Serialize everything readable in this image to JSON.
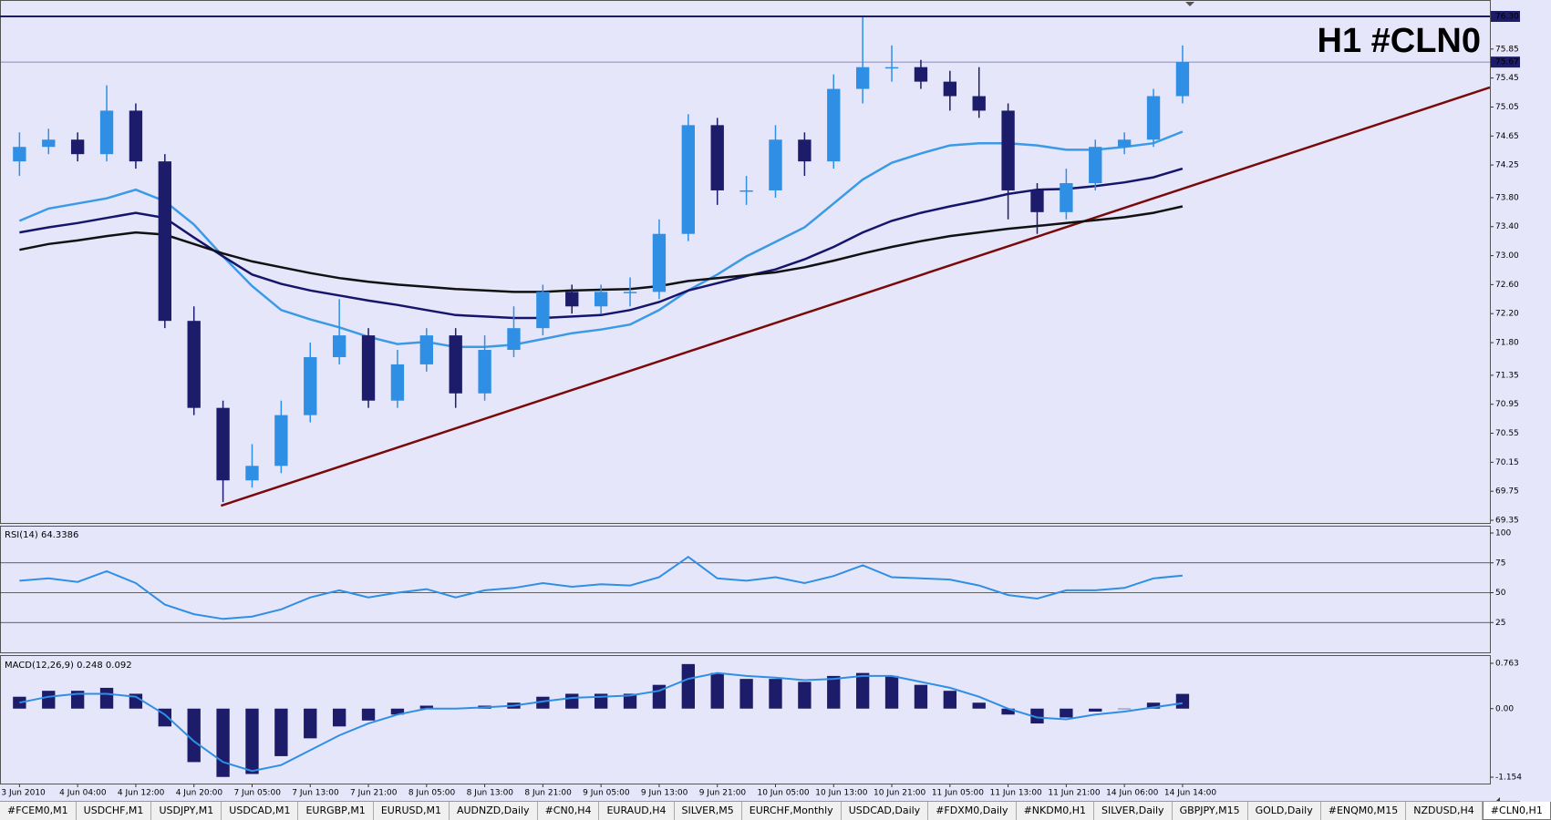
{
  "chart_data": [
    {
      "type": "candlestick",
      "title": "H1 #CLN0",
      "categories": [
        "3 Jun 2010",
        null,
        "4 Jun 04:00",
        null,
        "4 Jun 12:00",
        null,
        "4 Jun 20:00",
        null,
        "7 Jun 05:00",
        null,
        "7 Jun 13:00",
        null,
        "7 Jun 21:00",
        null,
        "8 Jun 05:00",
        null,
        "8 Jun 13:00",
        null,
        "8 Jun 21:00",
        null,
        "9 Jun 05:00",
        null,
        "9 Jun 13:00",
        null,
        "9 Jun 21:00",
        null,
        "10 Jun 05:00",
        null,
        "10 Jun 13:00",
        null,
        "10 Jun 21:00",
        null,
        "11 Jun 05:00",
        null,
        "11 Jun 13:00",
        null,
        "11 Jun 21:00",
        null,
        "14 Jun 06:00",
        null,
        "14 Jun 14:00"
      ],
      "open": [
        74.3,
        74.5,
        74.6,
        74.4,
        75.0,
        74.3,
        72.1,
        70.9,
        69.9,
        70.1,
        70.8,
        71.6,
        71.9,
        71.0,
        71.5,
        71.9,
        71.1,
        71.7,
        72.0,
        72.5,
        72.3,
        72.5,
        72.5,
        73.3,
        74.8,
        73.9,
        73.9,
        74.6,
        74.3,
        75.3,
        75.6,
        75.6,
        75.4,
        75.2,
        75.0,
        73.9,
        73.6,
        74.0,
        74.5,
        74.6,
        75.2
      ],
      "high": [
        74.7,
        74.75,
        74.7,
        75.35,
        75.1,
        74.4,
        72.3,
        71.0,
        70.4,
        71.0,
        71.8,
        72.4,
        72.0,
        71.7,
        72.0,
        72.0,
        71.9,
        72.3,
        72.6,
        72.6,
        72.6,
        72.7,
        73.5,
        74.95,
        74.9,
        74.1,
        74.8,
        74.7,
        75.5,
        76.3,
        75.9,
        75.7,
        75.55,
        75.6,
        75.1,
        74.0,
        74.2,
        74.6,
        74.7,
        75.3,
        75.9
      ],
      "low": [
        74.1,
        74.4,
        74.3,
        74.3,
        74.2,
        72.0,
        70.8,
        69.6,
        69.8,
        70.0,
        70.7,
        71.5,
        70.9,
        70.9,
        71.4,
        70.9,
        71.0,
        71.6,
        71.9,
        72.2,
        72.2,
        72.3,
        72.4,
        73.2,
        73.7,
        73.7,
        73.8,
        74.1,
        74.2,
        75.1,
        75.4,
        75.3,
        75.0,
        74.9,
        73.5,
        73.3,
        73.5,
        73.9,
        74.4,
        74.5,
        75.1
      ],
      "close": [
        74.5,
        74.6,
        74.4,
        75.0,
        74.3,
        72.1,
        70.9,
        69.9,
        70.1,
        70.8,
        71.6,
        71.9,
        71.0,
        71.5,
        71.9,
        71.1,
        71.7,
        72.0,
        72.5,
        72.3,
        72.5,
        72.5,
        73.3,
        74.8,
        73.9,
        73.9,
        74.6,
        74.3,
        75.3,
        75.6,
        75.6,
        75.4,
        75.2,
        75.0,
        73.9,
        73.6,
        74.0,
        74.5,
        74.6,
        75.2,
        75.67
      ],
      "bull_color": "#2f8fe5",
      "bear_color": "#1c1c6b",
      "moving_averages": [
        {
          "color": "#3a9ae6",
          "values": [
            73.48,
            73.65,
            73.72,
            73.79,
            73.91,
            73.75,
            73.43,
            72.99,
            72.58,
            72.25,
            72.12,
            72.01,
            71.88,
            71.78,
            71.81,
            71.74,
            71.74,
            71.77,
            71.85,
            71.93,
            71.98,
            72.05,
            72.25,
            72.52,
            72.74,
            72.99,
            73.19,
            73.39,
            73.72,
            74.05,
            74.28,
            74.41,
            74.52,
            74.55,
            74.55,
            74.52,
            74.46,
            74.46,
            74.5,
            74.55,
            74.71
          ]
        },
        {
          "color": "#15156b",
          "values": [
            73.32,
            73.39,
            73.45,
            73.52,
            73.59,
            73.52,
            73.25,
            72.99,
            72.74,
            72.61,
            72.52,
            72.45,
            72.38,
            72.32,
            72.25,
            72.18,
            72.16,
            72.14,
            72.14,
            72.16,
            72.18,
            72.25,
            72.36,
            72.52,
            72.62,
            72.72,
            72.81,
            72.95,
            73.12,
            73.32,
            73.48,
            73.59,
            73.68,
            73.76,
            73.85,
            73.91,
            73.92,
            73.96,
            74.01,
            74.08,
            74.2
          ]
        },
        {
          "color": "#111111",
          "values": [
            73.08,
            73.16,
            73.21,
            73.27,
            73.32,
            73.29,
            73.16,
            73.03,
            72.92,
            72.84,
            72.76,
            72.69,
            72.64,
            72.6,
            72.57,
            72.54,
            72.52,
            72.5,
            72.5,
            72.52,
            72.53,
            72.54,
            72.58,
            72.65,
            72.69,
            72.73,
            72.77,
            72.84,
            72.93,
            73.03,
            73.12,
            73.2,
            73.27,
            73.32,
            73.37,
            73.41,
            73.45,
            73.49,
            73.53,
            73.59,
            73.68
          ]
        }
      ],
      "trendline": {
        "color": "#7a0a0a",
        "x": [
          6.93,
          50.57
        ],
        "values": [
          69.55,
          75.32
        ]
      },
      "current_price": 75.67,
      "levels": [
        76.3
      ],
      "level_color": "#1c1c6b",
      "xlim": [
        -0.67,
        50.57
      ],
      "ylim": [
        69.35,
        76.3
      ],
      "yticks": [
        69.35,
        69.75,
        70.15,
        70.55,
        70.95,
        71.35,
        {
          "value": 71.8,
          "label": "71.80"
        },
        {
          "value": 72.2,
          "label": "72.20"
        },
        {
          "value": 72.6,
          "label": "72.60"
        },
        {
          "value": 73,
          "label": "73.00"
        },
        {
          "value": 73.4,
          "label": "73.40"
        },
        {
          "value": 73.8,
          "label": "73.80"
        },
        74.25,
        74.65,
        75.05,
        75.45,
        75.85,
        {
          "value": 76.3,
          "label": "76.30"
        }
      ]
    },
    {
      "type": "line",
      "title": "RSI(14) 64.3386",
      "color": "#2f8fe5",
      "values": [
        60,
        62,
        59,
        68,
        58,
        40,
        32,
        28,
        30,
        36,
        46,
        52,
        46,
        50,
        53,
        46,
        52,
        54,
        58,
        55,
        57,
        56,
        63,
        80,
        62,
        60,
        63,
        58,
        64,
        73,
        63,
        62,
        61,
        56,
        48,
        45,
        52,
        52,
        54,
        62,
        64.3386
      ],
      "levels": [
        75,
        50,
        25
      ],
      "ylim": [
        0,
        100
      ],
      "yticks": [
        100,
        75,
        50,
        25
      ]
    },
    {
      "type": "bar",
      "title": "MACD(12,26,9) 0.248 0.092",
      "color": "#1c1c6b",
      "values": [
        0.2,
        0.3,
        0.3,
        0.35,
        0.25,
        -0.3,
        -0.9,
        -1.15,
        -1.1,
        -0.8,
        -0.5,
        -0.3,
        -0.2,
        -0.1,
        0.05,
        0.0,
        0.05,
        0.1,
        0.2,
        0.25,
        0.25,
        0.25,
        0.4,
        0.75,
        0.6,
        0.5,
        0.5,
        0.45,
        0.55,
        0.6,
        0.55,
        0.4,
        0.3,
        0.1,
        -0.1,
        -0.25,
        -0.15,
        -0.05,
        0.0,
        0.1,
        0.248
      ],
      "signal": {
        "color": "#2f8fe5",
        "values": [
          0.1,
          0.2,
          0.25,
          0.25,
          0.2,
          -0.1,
          -0.55,
          -0.9,
          -1.05,
          -0.95,
          -0.7,
          -0.45,
          -0.25,
          -0.1,
          0.0,
          0.0,
          0.02,
          0.05,
          0.12,
          0.18,
          0.2,
          0.22,
          0.3,
          0.5,
          0.6,
          0.55,
          0.52,
          0.48,
          0.5,
          0.55,
          0.55,
          0.45,
          0.35,
          0.2,
          0.0,
          -0.15,
          -0.18,
          -0.1,
          -0.05,
          0.02,
          0.092
        ]
      },
      "ylim": [
        -1.154,
        0.763
      ],
      "yticks": [
        0.763,
        {
          "value": 0,
          "label": "0.00"
        },
        -1.154
      ]
    }
  ],
  "tabs": {
    "items": [
      "#FCEM0,M1",
      "USDCHF,M1",
      "USDJPY,M1",
      "USDCAD,M1",
      "EURGBP,M1",
      "EURUSD,M1",
      "AUDNZD,Daily",
      "#CN0,H4",
      "EURAUD,H4",
      "SILVER,M5",
      "EURCHF,Monthly",
      "USDCAD,Daily",
      "#FDXM0,Daily",
      "#NKDM0,H1",
      "SILVER,Daily",
      "GBPJPY,M15",
      "GOLD,Daily",
      "#ENQM0,M15",
      "NZDUSD,H4",
      "#CLN0,H1"
    ],
    "active": 19
  }
}
